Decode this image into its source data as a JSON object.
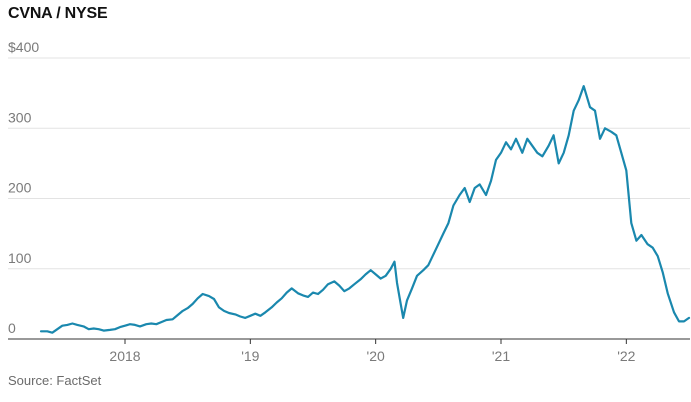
{
  "title": "CVNA / NYSE",
  "source": "Source: FactSet",
  "chart_data": {
    "type": "line",
    "title": "CVNA / NYSE",
    "xlabel": "",
    "ylabel": "",
    "ylim": [
      0,
      400
    ],
    "xlim": [
      2017.25,
      2022.5
    ],
    "grid": true,
    "y_ticks": [
      {
        "value": 400,
        "label": "$400"
      },
      {
        "value": 300,
        "label": "300"
      },
      {
        "value": 200,
        "label": "200"
      },
      {
        "value": 100,
        "label": "100"
      },
      {
        "value": 0,
        "label": "0"
      }
    ],
    "x_ticks": [
      {
        "value": 2018,
        "label": "2018"
      },
      {
        "value": 2019,
        "label": "'19"
      },
      {
        "value": 2020,
        "label": "'20"
      },
      {
        "value": 2021,
        "label": "'21"
      },
      {
        "value": 2022,
        "label": "'22"
      }
    ],
    "series": [
      {
        "color": "#1a88ae",
        "points": [
          [
            2017.33,
            11
          ],
          [
            2017.38,
            11
          ],
          [
            2017.42,
            9
          ],
          [
            2017.46,
            14
          ],
          [
            2017.5,
            19
          ],
          [
            2017.54,
            20
          ],
          [
            2017.58,
            22
          ],
          [
            2017.62,
            20
          ],
          [
            2017.67,
            18
          ],
          [
            2017.71,
            14
          ],
          [
            2017.75,
            15
          ],
          [
            2017.79,
            14
          ],
          [
            2017.83,
            12
          ],
          [
            2017.88,
            13
          ],
          [
            2017.92,
            14
          ],
          [
            2017.96,
            17
          ],
          [
            2018.0,
            19
          ],
          [
            2018.04,
            21
          ],
          [
            2018.08,
            20
          ],
          [
            2018.12,
            18
          ],
          [
            2018.17,
            21
          ],
          [
            2018.21,
            22
          ],
          [
            2018.25,
            21
          ],
          [
            2018.29,
            24
          ],
          [
            2018.33,
            27
          ],
          [
            2018.38,
            28
          ],
          [
            2018.42,
            34
          ],
          [
            2018.46,
            40
          ],
          [
            2018.5,
            44
          ],
          [
            2018.54,
            50
          ],
          [
            2018.58,
            58
          ],
          [
            2018.62,
            64
          ],
          [
            2018.67,
            61
          ],
          [
            2018.71,
            57
          ],
          [
            2018.75,
            45
          ],
          [
            2018.79,
            40
          ],
          [
            2018.83,
            37
          ],
          [
            2018.88,
            35
          ],
          [
            2018.92,
            32
          ],
          [
            2018.96,
            30
          ],
          [
            2019.0,
            33
          ],
          [
            2019.04,
            36
          ],
          [
            2019.08,
            33
          ],
          [
            2019.12,
            38
          ],
          [
            2019.17,
            45
          ],
          [
            2019.21,
            52
          ],
          [
            2019.25,
            58
          ],
          [
            2019.29,
            66
          ],
          [
            2019.33,
            72
          ],
          [
            2019.38,
            65
          ],
          [
            2019.42,
            62
          ],
          [
            2019.46,
            60
          ],
          [
            2019.5,
            66
          ],
          [
            2019.54,
            64
          ],
          [
            2019.58,
            70
          ],
          [
            2019.62,
            78
          ],
          [
            2019.67,
            82
          ],
          [
            2019.71,
            76
          ],
          [
            2019.75,
            68
          ],
          [
            2019.79,
            72
          ],
          [
            2019.83,
            78
          ],
          [
            2019.88,
            85
          ],
          [
            2019.92,
            92
          ],
          [
            2019.96,
            98
          ],
          [
            2020.0,
            92
          ],
          [
            2020.04,
            86
          ],
          [
            2020.08,
            90
          ],
          [
            2020.12,
            100
          ],
          [
            2020.15,
            110
          ],
          [
            2020.17,
            80
          ],
          [
            2020.2,
            50
          ],
          [
            2020.22,
            30
          ],
          [
            2020.25,
            55
          ],
          [
            2020.29,
            72
          ],
          [
            2020.33,
            90
          ],
          [
            2020.38,
            98
          ],
          [
            2020.42,
            105
          ],
          [
            2020.46,
            120
          ],
          [
            2020.5,
            135
          ],
          [
            2020.54,
            150
          ],
          [
            2020.58,
            165
          ],
          [
            2020.62,
            190
          ],
          [
            2020.67,
            205
          ],
          [
            2020.71,
            215
          ],
          [
            2020.75,
            195
          ],
          [
            2020.79,
            215
          ],
          [
            2020.83,
            220
          ],
          [
            2020.88,
            205
          ],
          [
            2020.92,
            225
          ],
          [
            2020.96,
            255
          ],
          [
            2021.0,
            265
          ],
          [
            2021.04,
            280
          ],
          [
            2021.08,
            270
          ],
          [
            2021.12,
            285
          ],
          [
            2021.17,
            265
          ],
          [
            2021.21,
            285
          ],
          [
            2021.25,
            275
          ],
          [
            2021.29,
            265
          ],
          [
            2021.33,
            260
          ],
          [
            2021.38,
            275
          ],
          [
            2021.42,
            290
          ],
          [
            2021.46,
            250
          ],
          [
            2021.5,
            265
          ],
          [
            2021.54,
            290
          ],
          [
            2021.58,
            325
          ],
          [
            2021.62,
            340
          ],
          [
            2021.66,
            360
          ],
          [
            2021.71,
            330
          ],
          [
            2021.75,
            325
          ],
          [
            2021.79,
            285
          ],
          [
            2021.83,
            300
          ],
          [
            2021.88,
            295
          ],
          [
            2021.92,
            290
          ],
          [
            2021.96,
            265
          ],
          [
            2022.0,
            240
          ],
          [
            2022.04,
            165
          ],
          [
            2022.08,
            140
          ],
          [
            2022.12,
            148
          ],
          [
            2022.17,
            135
          ],
          [
            2022.21,
            130
          ],
          [
            2022.25,
            118
          ],
          [
            2022.29,
            95
          ],
          [
            2022.33,
            65
          ],
          [
            2022.38,
            38
          ],
          [
            2022.42,
            25
          ],
          [
            2022.46,
            25
          ],
          [
            2022.5,
            30
          ]
        ]
      }
    ]
  }
}
